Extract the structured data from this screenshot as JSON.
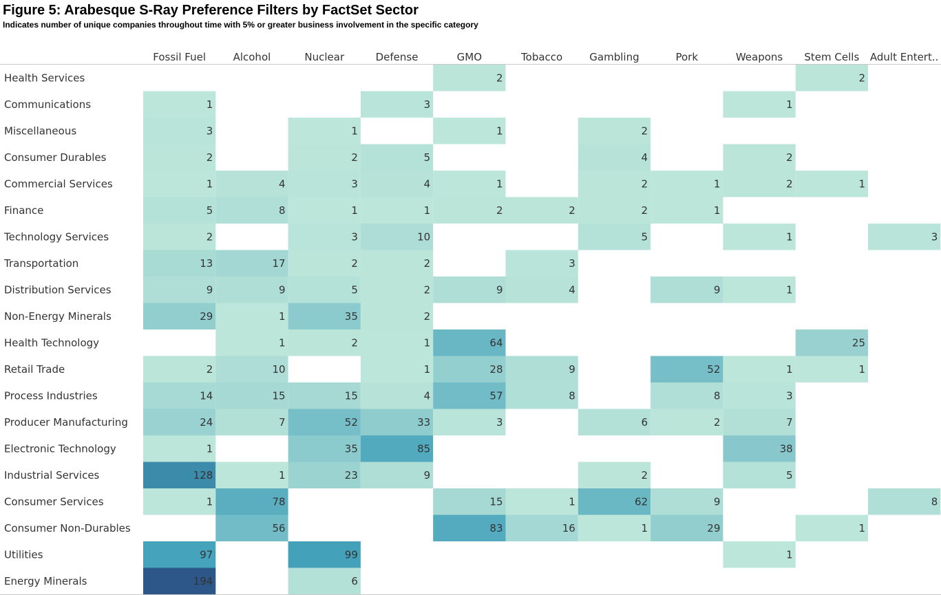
{
  "chart_data": {
    "type": "heatmap",
    "title": "Figure 5: Arabesque S-Ray Preference Filters by FactSet Sector",
    "subtitle": "Indicates number of unique companies throughout time with 5% or greater business involvement in the specific category",
    "columns": [
      "Fossil Fuel",
      "Alcohol",
      "Nuclear",
      "Defense",
      "GMO",
      "Tobacco",
      "Gambling",
      "Pork",
      "Weapons",
      "Stem Cells",
      "Adult Entert.."
    ],
    "rows": [
      "Health Services",
      "Communications",
      "Miscellaneous",
      "Consumer Durables",
      "Commercial Services",
      "Finance",
      "Technology Services",
      "Transportation",
      "Distribution Services",
      "Non-Energy Minerals",
      "Health Technology",
      "Retail Trade",
      "Process Industries",
      "Producer Manufacturing",
      "Electronic Technology",
      "Industrial Services",
      "Consumer Services",
      "Consumer Non-Durables",
      "Utilities",
      "Energy Minerals"
    ],
    "values": [
      [
        null,
        null,
        null,
        null,
        2,
        null,
        null,
        null,
        null,
        2,
        null
      ],
      [
        1,
        null,
        null,
        3,
        null,
        null,
        null,
        null,
        1,
        null,
        null
      ],
      [
        3,
        null,
        1,
        null,
        1,
        null,
        2,
        null,
        null,
        null,
        null
      ],
      [
        2,
        null,
        2,
        5,
        null,
        null,
        4,
        null,
        2,
        null,
        null
      ],
      [
        1,
        4,
        3,
        4,
        1,
        null,
        2,
        1,
        2,
        1,
        null
      ],
      [
        5,
        8,
        1,
        1,
        2,
        2,
        2,
        1,
        null,
        null,
        null
      ],
      [
        2,
        null,
        3,
        10,
        null,
        null,
        5,
        null,
        1,
        null,
        3
      ],
      [
        13,
        17,
        2,
        2,
        null,
        3,
        null,
        null,
        null,
        null,
        null
      ],
      [
        9,
        9,
        5,
        2,
        9,
        4,
        null,
        9,
        1,
        null,
        null
      ],
      [
        29,
        1,
        35,
        2,
        null,
        null,
        null,
        null,
        null,
        null,
        null
      ],
      [
        null,
        1,
        2,
        1,
        64,
        null,
        null,
        null,
        null,
        25,
        null
      ],
      [
        2,
        10,
        null,
        1,
        28,
        9,
        null,
        52,
        1,
        1,
        null
      ],
      [
        14,
        15,
        15,
        4,
        57,
        8,
        null,
        8,
        3,
        null,
        null
      ],
      [
        24,
        7,
        52,
        33,
        3,
        null,
        6,
        2,
        7,
        null,
        null
      ],
      [
        1,
        null,
        35,
        85,
        null,
        null,
        null,
        null,
        38,
        null,
        null
      ],
      [
        128,
        1,
        23,
        9,
        null,
        null,
        2,
        null,
        5,
        null,
        null
      ],
      [
        1,
        78,
        null,
        null,
        15,
        1,
        62,
        9,
        null,
        null,
        8
      ],
      [
        null,
        56,
        null,
        null,
        83,
        16,
        1,
        29,
        null,
        1,
        null
      ],
      [
        97,
        null,
        99,
        null,
        null,
        null,
        null,
        null,
        1,
        null,
        null
      ],
      [
        194,
        null,
        6,
        null,
        null,
        null,
        null,
        null,
        null,
        null,
        null
      ]
    ],
    "color_scale": {
      "low": "#bde6da",
      "mid": "#45a3bb",
      "high": "#2c5788",
      "mid_value": 97,
      "max_value": 194
    }
  }
}
